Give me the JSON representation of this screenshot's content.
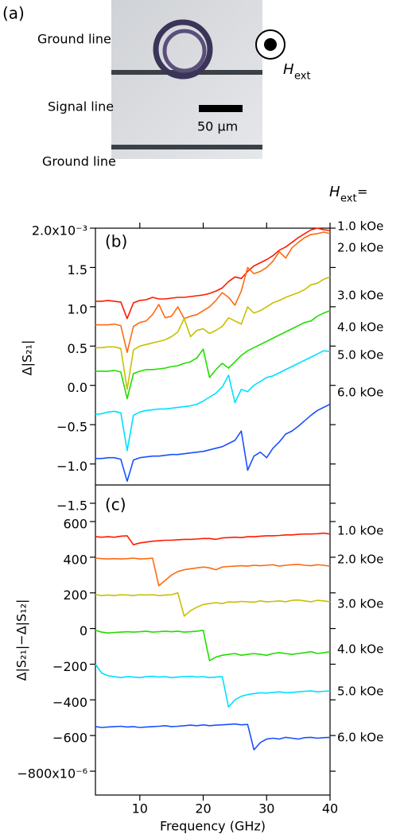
{
  "panel_a": {
    "label": "(a)",
    "ground_line_top": "Ground line",
    "signal_line": "Signal line",
    "ground_line_bottom": "Ground line",
    "scale_bar": "50 μm",
    "field_symbol": "H",
    "field_subscript": "ext"
  },
  "legend_title": {
    "symbol": "H",
    "subscript": "ext",
    "suffix": "="
  },
  "chart_data": [
    {
      "type": "line",
      "panel_label": "(b)",
      "ylabel": "Δ|S₂₁|",
      "xlim": [
        3,
        40
      ],
      "xticks": [
        10,
        20,
        30,
        40
      ],
      "ylim": [
        -1.5,
        2.0
      ],
      "yticks": [
        {
          "value": 2.0,
          "label": "2.0x10⁻³"
        },
        1.5,
        {
          "value": 1.0,
          "label": "1.0"
        },
        0.5,
        {
          "value": 0,
          "label": "0.0"
        },
        {
          "value": -0.5,
          "label": "−0.5"
        },
        {
          "value": -1.0,
          "label": "−1.0"
        },
        {
          "value": -1.5,
          "label": "−1.5"
        }
      ],
      "x": [
        3,
        4,
        5,
        6,
        7,
        8,
        9,
        10,
        11,
        12,
        13,
        14,
        15,
        16,
        17,
        18,
        19,
        20,
        21,
        22,
        23,
        24,
        25,
        26,
        27,
        28,
        29,
        30,
        31,
        32,
        33,
        34,
        35,
        36,
        37,
        38,
        39,
        40
      ],
      "series": [
        {
          "name": "1.0 kOe",
          "color": "#ff1a00",
          "values": [
            1.07,
            1.07,
            1.08,
            1.07,
            1.06,
            0.85,
            1.05,
            1.08,
            1.09,
            1.12,
            1.1,
            1.1,
            1.11,
            1.12,
            1.12,
            1.13,
            1.14,
            1.15,
            1.17,
            1.2,
            1.24,
            1.32,
            1.38,
            1.36,
            1.45,
            1.52,
            1.56,
            1.6,
            1.65,
            1.72,
            1.76,
            1.82,
            1.88,
            1.93,
            1.98,
            2.0,
            1.98,
            1.97
          ]
        },
        {
          "name": "2.0 kOe",
          "color": "#ff6a10",
          "values": [
            0.77,
            0.77,
            0.77,
            0.78,
            0.76,
            0.42,
            0.75,
            0.8,
            0.82,
            0.9,
            1.03,
            0.86,
            0.88,
            1.0,
            0.85,
            0.88,
            0.9,
            0.95,
            1.0,
            1.08,
            1.18,
            1.12,
            1.02,
            1.2,
            1.5,
            1.42,
            1.45,
            1.5,
            1.58,
            1.7,
            1.62,
            1.75,
            1.82,
            1.88,
            1.92,
            1.93,
            1.95,
            1.93
          ]
        },
        {
          "name": "3.0 kOe",
          "color": "#c8c000",
          "values": [
            0.48,
            0.48,
            0.49,
            0.49,
            0.47,
            -0.05,
            0.45,
            0.5,
            0.52,
            0.54,
            0.56,
            0.58,
            0.62,
            0.68,
            0.85,
            0.62,
            0.7,
            0.72,
            0.66,
            0.7,
            0.75,
            0.86,
            0.82,
            0.78,
            1.0,
            0.92,
            0.95,
            1.0,
            1.05,
            1.08,
            1.12,
            1.15,
            1.18,
            1.22,
            1.28,
            1.3,
            1.35,
            1.38
          ]
        },
        {
          "name": "4.0 kOe",
          "color": "#22dd00",
          "values": [
            0.18,
            0.18,
            0.18,
            0.19,
            0.17,
            -0.17,
            0.15,
            0.18,
            0.2,
            0.2,
            0.21,
            0.22,
            0.24,
            0.25,
            0.28,
            0.3,
            0.35,
            0.46,
            0.1,
            0.2,
            0.28,
            0.22,
            0.3,
            0.38,
            0.44,
            0.48,
            0.52,
            0.56,
            0.6,
            0.64,
            0.68,
            0.72,
            0.76,
            0.8,
            0.82,
            0.88,
            0.92,
            0.95
          ]
        },
        {
          "name": "5.0 kOe",
          "color": "#00e0ff",
          "values": [
            -0.37,
            -0.36,
            -0.34,
            -0.33,
            -0.35,
            -0.83,
            -0.38,
            -0.34,
            -0.32,
            -0.31,
            -0.3,
            -0.3,
            -0.29,
            -0.28,
            -0.27,
            -0.26,
            -0.24,
            -0.2,
            -0.15,
            -0.1,
            -0.02,
            0.13,
            -0.22,
            -0.05,
            -0.08,
            0.0,
            0.05,
            0.1,
            0.12,
            0.16,
            0.2,
            0.24,
            0.28,
            0.32,
            0.36,
            0.4,
            0.44,
            0.43
          ]
        },
        {
          "name": "6.0 kOe",
          "color": "#1a50ff",
          "values": [
            -0.93,
            -0.93,
            -0.92,
            -0.92,
            -0.94,
            -1.22,
            -0.95,
            -0.92,
            -0.91,
            -0.9,
            -0.9,
            -0.89,
            -0.88,
            -0.88,
            -0.87,
            -0.86,
            -0.85,
            -0.84,
            -0.82,
            -0.8,
            -0.78,
            -0.74,
            -0.7,
            -0.58,
            -1.08,
            -0.9,
            -0.85,
            -0.92,
            -0.8,
            -0.72,
            -0.62,
            -0.58,
            -0.52,
            -0.45,
            -0.38,
            -0.32,
            -0.28,
            -0.24
          ]
        }
      ]
    },
    {
      "type": "line",
      "panel_label": "(c)",
      "ylabel": "Δ|S₂₁|−Δ|S₁₂|",
      "xlabel": "Frequency (GHz)",
      "xlim": [
        3,
        40
      ],
      "xticks": [
        10,
        20,
        30,
        40
      ],
      "ylim": [
        -800,
        600
      ],
      "yticks": [
        600,
        400,
        200,
        0,
        {
          "value": -200,
          "label": "−200"
        },
        {
          "value": -400,
          "label": "−400"
        },
        {
          "value": -600,
          "label": "−600"
        },
        {
          "value": -800,
          "label": "−800x10⁻⁶"
        }
      ],
      "x": [
        3,
        4,
        5,
        6,
        7,
        8,
        9,
        10,
        11,
        12,
        13,
        14,
        15,
        16,
        17,
        18,
        19,
        20,
        21,
        22,
        23,
        24,
        25,
        26,
        27,
        28,
        29,
        30,
        31,
        32,
        33,
        34,
        35,
        36,
        37,
        38,
        39,
        40
      ],
      "series": [
        {
          "name": "1.0 kOe",
          "color": "#ff1a00",
          "values": [
            515,
            512,
            515,
            512,
            518,
            520,
            470,
            480,
            485,
            490,
            492,
            495,
            495,
            498,
            500,
            500,
            502,
            505,
            505,
            500,
            508,
            510,
            512,
            510,
            515,
            515,
            518,
            520,
            520,
            522,
            525,
            525,
            528,
            530,
            530,
            532,
            535,
            530
          ]
        },
        {
          "name": "2.0 kOe",
          "color": "#ff6a10",
          "values": [
            395,
            392,
            390,
            392,
            390,
            392,
            395,
            390,
            392,
            395,
            240,
            270,
            300,
            320,
            330,
            335,
            340,
            345,
            340,
            330,
            345,
            348,
            350,
            352,
            350,
            355,
            352,
            355,
            358,
            350,
            355,
            358,
            360,
            355,
            352,
            358,
            355,
            350
          ]
        },
        {
          "name": "3.0 kOe",
          "color": "#c8c000",
          "values": [
            190,
            185,
            188,
            185,
            190,
            188,
            185,
            190,
            188,
            190,
            185,
            188,
            190,
            200,
            70,
            100,
            120,
            135,
            140,
            145,
            140,
            150,
            148,
            152,
            150,
            148,
            155,
            150,
            152,
            155,
            150,
            158,
            160,
            155,
            150,
            158,
            155,
            150
          ]
        },
        {
          "name": "4.0 kOe",
          "color": "#22dd00",
          "values": [
            -10,
            -20,
            -25,
            -22,
            -20,
            -18,
            -20,
            -18,
            -15,
            -20,
            -18,
            -15,
            -18,
            -15,
            -20,
            -18,
            -15,
            -10,
            -180,
            -160,
            -150,
            -145,
            -140,
            -150,
            -145,
            -140,
            -145,
            -150,
            -140,
            -135,
            -140,
            -145,
            -140,
            -135,
            -130,
            -140,
            -135,
            -130
          ]
        },
        {
          "name": "5.0 kOe",
          "color": "#00e0ff",
          "values": [
            -200,
            -250,
            -265,
            -270,
            -275,
            -270,
            -272,
            -275,
            -270,
            -268,
            -272,
            -270,
            -275,
            -272,
            -270,
            -268,
            -272,
            -270,
            -275,
            -272,
            -270,
            -440,
            -400,
            -380,
            -370,
            -365,
            -360,
            -362,
            -358,
            -355,
            -360,
            -358,
            -355,
            -352,
            -350,
            -355,
            -352,
            -350
          ]
        },
        {
          "name": "6.0 kOe",
          "color": "#1a50ff",
          "values": [
            -550,
            -555,
            -552,
            -550,
            -548,
            -552,
            -550,
            -555,
            -552,
            -550,
            -548,
            -545,
            -550,
            -548,
            -545,
            -542,
            -545,
            -540,
            -545,
            -542,
            -540,
            -538,
            -535,
            -540,
            -538,
            -680,
            -640,
            -620,
            -615,
            -620,
            -610,
            -615,
            -620,
            -612,
            -610,
            -615,
            -612,
            -610
          ]
        }
      ]
    }
  ]
}
